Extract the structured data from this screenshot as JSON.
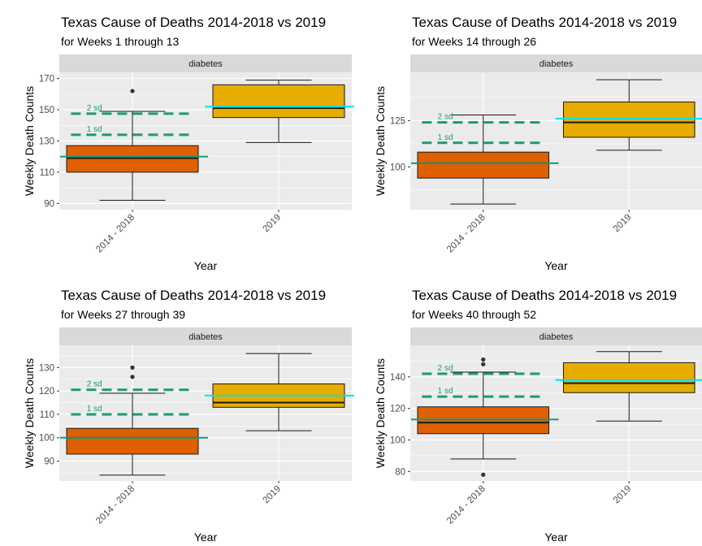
{
  "chart_data": [
    {
      "type": "boxplot",
      "title": "Texas Cause of Deaths  2014-2018 vs 2019",
      "subtitle": "for Weeks 1 through 13",
      "facet": "diabetes",
      "xlabel": "Year",
      "ylabel": "Weekly Death Counts",
      "ylim": [
        86,
        174
      ],
      "yticks": [
        90,
        110,
        130,
        150,
        170
      ],
      "categories": [
        "2014 - 2018",
        "2019"
      ],
      "boxes": [
        {
          "category": "2014 - 2018",
          "min": 92,
          "q1": 110,
          "median": 119,
          "q3": 127,
          "max": 149,
          "outliers": [
            162
          ],
          "fill": "#e06000"
        },
        {
          "category": "2019",
          "min": 129,
          "q1": 145,
          "median": 151,
          "q3": 166,
          "max": 169,
          "outliers": [],
          "fill": "#e6ac00"
        }
      ],
      "mean_line": {
        "category": "2014 - 2018",
        "value": 120,
        "color": "#1a9a78"
      },
      "mean_2019": {
        "category": "2019",
        "value": 152,
        "color": "#00e5ee"
      },
      "sd_lines": [
        {
          "label": "1 sd",
          "value": 134,
          "color": "#1a9a78"
        },
        {
          "label": "2 sd",
          "value": 147.5,
          "color": "#1a9a78"
        }
      ]
    },
    {
      "type": "boxplot",
      "title": "Texas Cause of Deaths  2014-2018 vs 2019",
      "subtitle": "for Weeks 14 through 26",
      "facet": "diabetes",
      "xlabel": "Year",
      "ylabel": "Weekly Death Counts",
      "ylim": [
        77,
        151
      ],
      "yticks": [
        100,
        125
      ],
      "categories": [
        "2014 - 2018",
        "2019"
      ],
      "boxes": [
        {
          "category": "2014 - 2018",
          "min": 80,
          "q1": 94,
          "median": 102,
          "q3": 108,
          "max": 128,
          "outliers": [],
          "fill": "#e06000"
        },
        {
          "category": "2019",
          "min": 109,
          "q1": 116,
          "median": 124,
          "q3": 135,
          "max": 147,
          "outliers": [],
          "fill": "#e6ac00"
        }
      ],
      "mean_line": {
        "category": "2014 - 2018",
        "value": 102,
        "color": "#1a9a78"
      },
      "mean_2019": {
        "category": "2019",
        "value": 126,
        "color": "#00e5ee"
      },
      "sd_lines": [
        {
          "label": "1 sd",
          "value": 113,
          "color": "#1a9a78"
        },
        {
          "label": "2 sd",
          "value": 124,
          "color": "#1a9a78"
        }
      ]
    },
    {
      "type": "boxplot",
      "title": "Texas Cause of Deaths  2014-2018 vs 2019",
      "subtitle": "for Weeks 27 through 39",
      "facet": "diabetes",
      "xlabel": "Year",
      "ylabel": "Weekly Death Counts",
      "ylim": [
        81.5,
        139.5
      ],
      "yticks": [
        90,
        100,
        110,
        120,
        130
      ],
      "categories": [
        "2014 - 2018",
        "2019"
      ],
      "boxes": [
        {
          "category": "2014 - 2018",
          "min": 84,
          "q1": 93,
          "median": 100,
          "q3": 104,
          "max": 119,
          "outliers": [
            126,
            130
          ],
          "fill": "#e06000"
        },
        {
          "category": "2019",
          "min": 103,
          "q1": 113,
          "median": 115,
          "q3": 123,
          "max": 136,
          "outliers": [],
          "fill": "#e6ac00"
        }
      ],
      "mean_line": {
        "category": "2014 - 2018",
        "value": 100,
        "color": "#1a9a78"
      },
      "mean_2019": {
        "category": "2019",
        "value": 118,
        "color": "#00e5ee"
      },
      "sd_lines": [
        {
          "label": "1 sd",
          "value": 110,
          "color": "#1a9a78"
        },
        {
          "label": "2 sd",
          "value": 120.5,
          "color": "#1a9a78"
        }
      ]
    },
    {
      "type": "boxplot",
      "title": "Texas Cause of Deaths  2014-2018 vs 2019",
      "subtitle": "for Weeks 40 through 52",
      "facet": "diabetes",
      "xlabel": "Year",
      "ylabel": "Weekly Death Counts",
      "ylim": [
        74,
        160
      ],
      "yticks": [
        80,
        100,
        120,
        140
      ],
      "categories": [
        "2014 - 2018",
        "2019"
      ],
      "boxes": [
        {
          "category": "2014 - 2018",
          "min": 88,
          "q1": 104,
          "median": 111,
          "q3": 121,
          "max": 143,
          "outliers": [
            78,
            148,
            151
          ],
          "fill": "#e06000"
        },
        {
          "category": "2019",
          "min": 112,
          "q1": 130,
          "median": 136,
          "q3": 149,
          "max": 156,
          "outliers": [],
          "fill": "#e6ac00"
        }
      ],
      "mean_line": {
        "category": "2014 - 2018",
        "value": 113,
        "color": "#1a9a78"
      },
      "mean_2019": {
        "category": "2019",
        "value": 138,
        "color": "#00e5ee"
      },
      "sd_lines": [
        {
          "label": "1 sd",
          "value": 127.5,
          "color": "#1a9a78"
        },
        {
          "label": "2 sd",
          "value": 142,
          "color": "#1a9a78"
        }
      ]
    }
  ]
}
